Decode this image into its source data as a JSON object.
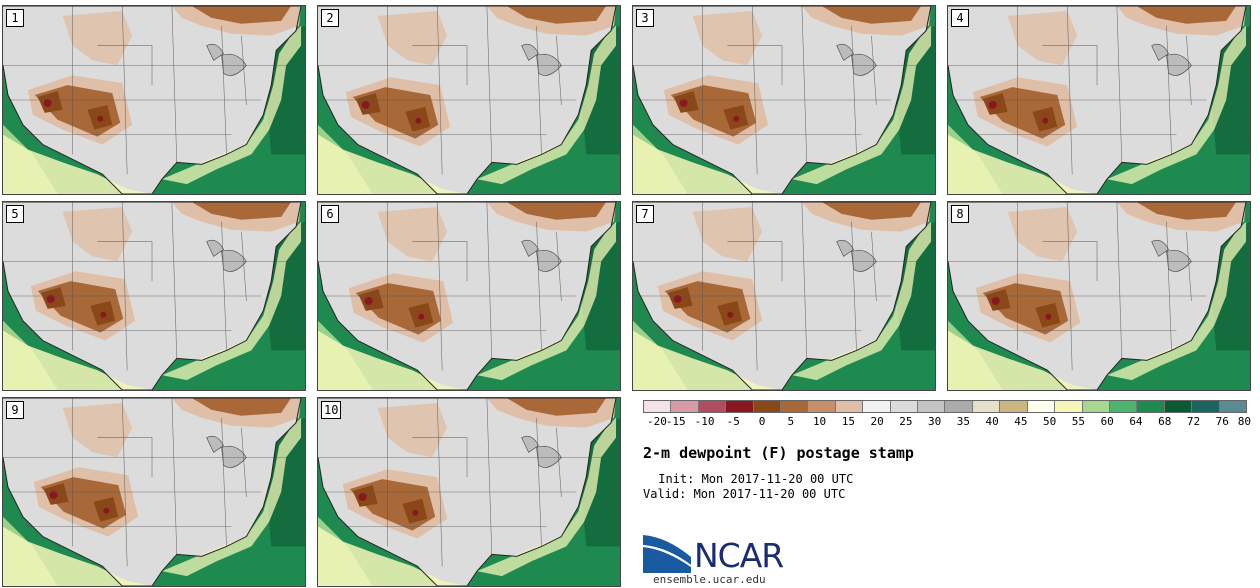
{
  "figure": {
    "title": "2-m dewpoint (F) postage stamp",
    "init": " Init: Mon 2017-11-20 00 UTC",
    "valid": "Valid: Mon 2017-11-20 00 UTC",
    "logo_text": "NCAR",
    "website": "ensemble.ucar.edu"
  },
  "members": [
    "1",
    "2",
    "3",
    "4",
    "5",
    "6",
    "7",
    "8",
    "9",
    "10"
  ],
  "colorbar": {
    "ticks": [
      "-20",
      "-15",
      "-10",
      "-5",
      "0",
      "5",
      "10",
      "15",
      "20",
      "25",
      "30",
      "35",
      "40",
      "45",
      "50",
      "55",
      "60",
      "64",
      "68",
      "72",
      "76",
      "80"
    ],
    "colors": [
      "#f3e3e8",
      "#d99aa8",
      "#b24c62",
      "#8a1620",
      "#8a4718",
      "#a86838",
      "#c8906a",
      "#dfbfa8",
      "#f2f2f2",
      "#dcdcdc",
      "#c4c4c4",
      "#ababab",
      "#e5e0c8",
      "#c9b680",
      "#fffff0",
      "#f4f7b8",
      "#a8d890",
      "#4db36d",
      "#1f8a50",
      "#0c5a32",
      "#1c6662",
      "#5a8a96"
    ]
  },
  "colors": {
    "ocean": "#1f8a50",
    "land": "#dcdcdc",
    "brown_dark": "#8a4718",
    "brown_mid": "#a86838",
    "brown_light": "#dfbfa8",
    "maroon": "#8a1620",
    "yellow": "#f4f7b8",
    "green_light": "#a8d890",
    "logo_blue": "#1a5aa0"
  }
}
